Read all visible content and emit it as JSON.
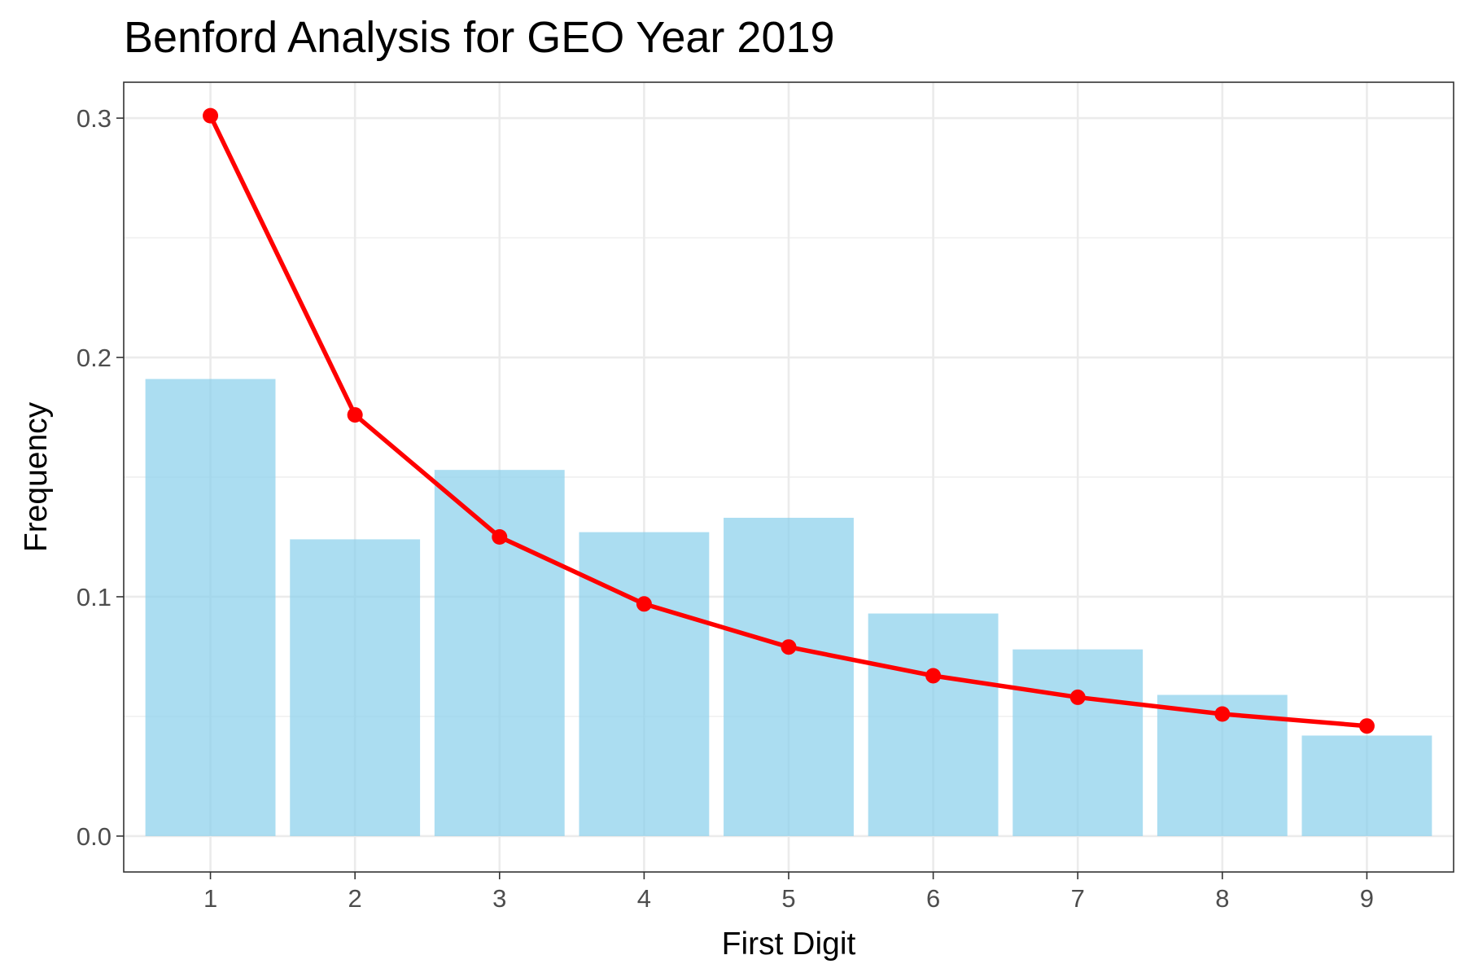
{
  "chart_data": {
    "type": "bar",
    "title": "Benford Analysis for GEO Year 2019",
    "xlabel": "First Digit",
    "ylabel": "Frequency",
    "categories": [
      "1",
      "2",
      "3",
      "4",
      "5",
      "6",
      "7",
      "8",
      "9"
    ],
    "x": [
      1,
      2,
      3,
      4,
      5,
      6,
      7,
      8,
      9
    ],
    "xlim": [
      0.4,
      9.6
    ],
    "ylim": [
      -0.015,
      0.315
    ],
    "y_ticks": [
      0.0,
      0.1,
      0.2,
      0.3
    ],
    "y_tick_labels": [
      "0.0",
      "0.1",
      "0.2",
      "0.3"
    ],
    "grid": true,
    "legend": "none",
    "series": [
      {
        "type": "bar",
        "color": "#87CEEB",
        "values": [
          0.191,
          0.124,
          0.153,
          0.127,
          0.133,
          0.093,
          0.078,
          0.059,
          0.042
        ]
      },
      {
        "type": "line",
        "color": "#FF0000",
        "markers": true,
        "values": [
          0.301,
          0.176,
          0.125,
          0.097,
          0.079,
          0.067,
          0.058,
          0.051,
          0.046
        ]
      }
    ]
  }
}
